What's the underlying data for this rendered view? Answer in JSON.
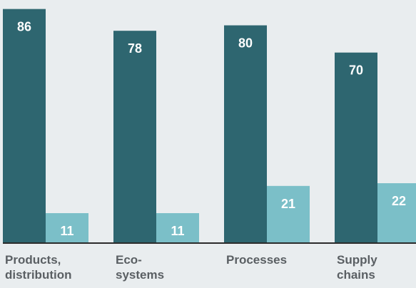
{
  "chart_data": {
    "type": "bar",
    "categories": [
      [
        "Products,",
        "distribution"
      ],
      [
        "Eco-",
        "systems"
      ],
      [
        "Processes"
      ],
      [
        "Supply",
        "chains"
      ]
    ],
    "series": [
      {
        "values": [
          86,
          78,
          80,
          70
        ],
        "color": "#2e6670"
      },
      {
        "values": [
          11,
          11,
          21,
          22
        ],
        "color": "#7bbfc8"
      }
    ],
    "ylim": [
      0,
      88
    ],
    "grid": false,
    "legend": "none",
    "xlabel": "",
    "ylabel": ""
  },
  "colors": {
    "background": "#e9edef",
    "baseline": "#2b2b2b",
    "value_label": "#ffffff",
    "category_label": "#5a5f63"
  }
}
